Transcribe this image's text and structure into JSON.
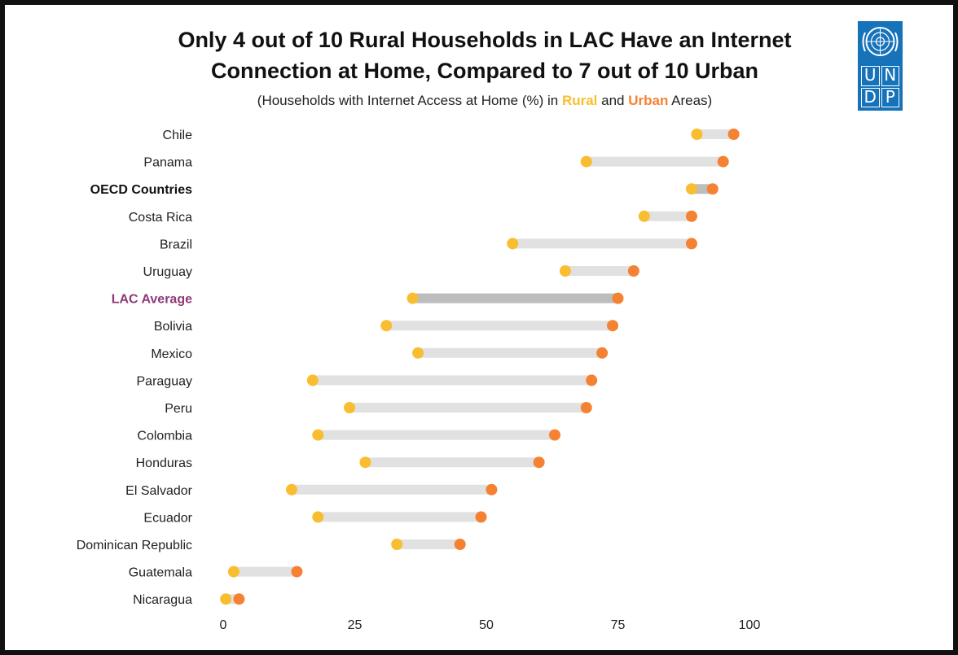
{
  "title_line1": "Only 4 out of 10 Rural Households in LAC Have an Internet",
  "title_line2": "Connection at Home, Compared to 7 out of 10 Urban",
  "subtitle": {
    "prefix": "(Households with Internet Access at Home (%) in ",
    "rural": "Rural",
    "middle": " and ",
    "urban": "Urban",
    "suffix": " Areas)"
  },
  "logo": {
    "letters": [
      "U",
      "N",
      "D",
      "P"
    ],
    "background": "#1673BA"
  },
  "colors": {
    "rural": "#F9BE2F",
    "urban": "#F58232",
    "bar": "#E1E1E1",
    "bar_highlight": "#BDBDBD",
    "lac_label": "#8E3A78"
  },
  "chart_data": {
    "type": "dumbbell",
    "xlim": [
      0,
      100
    ],
    "xticks": [
      "0",
      "25",
      "50",
      "75",
      "100"
    ],
    "grid": false,
    "categories": [
      "Chile",
      "Panama",
      "OECD Countries",
      "Costa Rica",
      "Brazil",
      "Uruguay",
      "LAC Average",
      "Bolivia",
      "Mexico",
      "Paraguay",
      "Peru",
      "Colombia",
      "Honduras",
      "El Salvador",
      "Ecuador",
      "Dominican Republic",
      "Guatemala",
      "Nicaragua"
    ],
    "highlight": [
      "OECD Countries",
      "LAC Average"
    ],
    "series": [
      {
        "name": "Rural",
        "values": [
          90,
          69,
          89,
          80,
          55,
          65,
          36,
          31,
          37,
          17,
          24,
          18,
          27,
          13,
          18,
          33,
          2,
          0.5
        ]
      },
      {
        "name": "Urban",
        "values": [
          97,
          95,
          93,
          89,
          89,
          78,
          75,
          74,
          72,
          70,
          69,
          63,
          60,
          51,
          49,
          45,
          14,
          3
        ]
      }
    ]
  }
}
